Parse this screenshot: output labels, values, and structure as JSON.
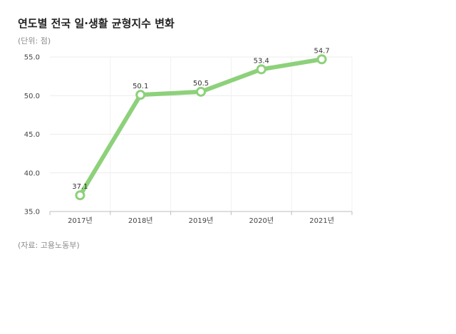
{
  "header": {
    "title": "연도별 전국 일·생활 균형지수 변화",
    "unit": "(단위: 점)"
  },
  "footer": {
    "source": "(자료: 고용노동부)"
  },
  "chart_data": {
    "type": "line",
    "title": "연도별 전국 일·생활 균형지수 변화",
    "xlabel": "",
    "ylabel": "",
    "categories": [
      "2017년",
      "2018년",
      "2019년",
      "2020년",
      "2021년"
    ],
    "series": [
      {
        "values": [
          37.1,
          50.1,
          50.5,
          53.4,
          54.7
        ]
      }
    ],
    "data_labels": [
      "37.1",
      "50.1",
      "50.5",
      "53.4",
      "54.7"
    ],
    "ylim": [
      35.0,
      55.0
    ],
    "yticks": [
      35.0,
      40.0,
      45.0,
      50.0,
      55.0
    ],
    "ytick_labels": [
      "35.0",
      "40.0",
      "45.0",
      "50.0",
      "55.0"
    ],
    "grid": true,
    "legend": "none",
    "line_color": "#8dd17a",
    "marker_fill": "#ffffff"
  }
}
